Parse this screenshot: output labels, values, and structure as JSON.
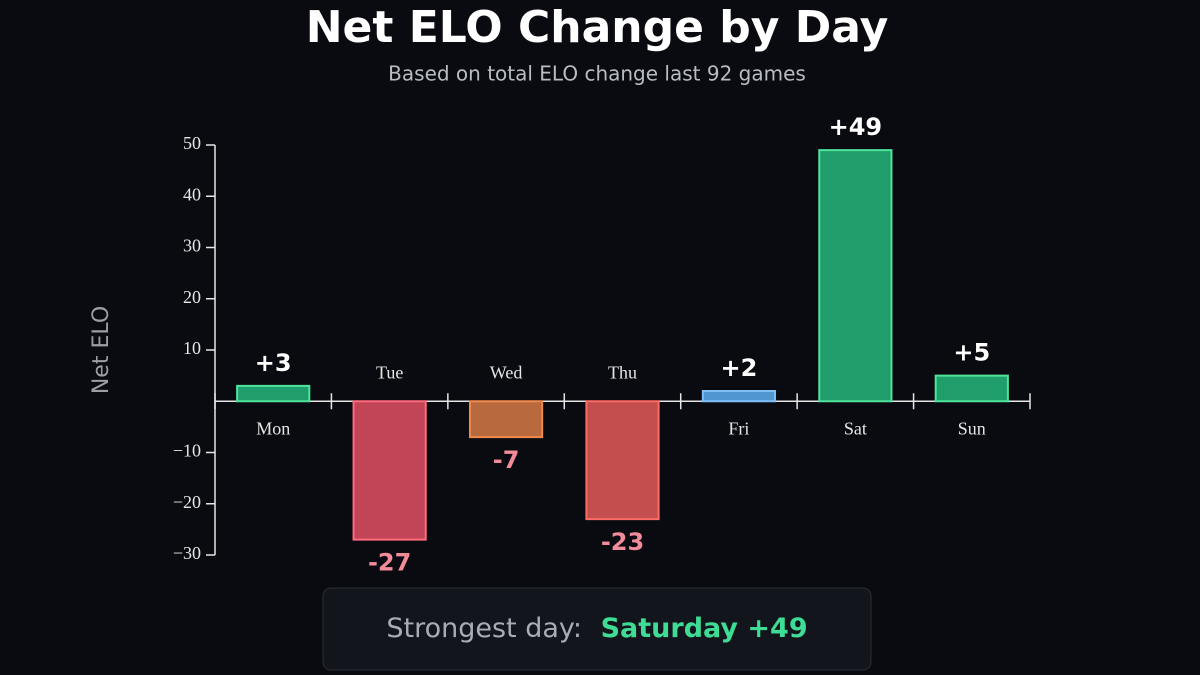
{
  "chart_data": {
    "type": "bar",
    "title": "Net ELO Change by Day",
    "subtitle": "Based on total ELO change last 92 games",
    "ylabel": "Net ELO",
    "categories": [
      "Mon",
      "Tue",
      "Wed",
      "Thu",
      "Fri",
      "Sat",
      "Sun"
    ],
    "values": [
      3,
      -27,
      -7,
      -23,
      2,
      49,
      5
    ],
    "value_labels": [
      "+3",
      "-27",
      "-7",
      "-23",
      "+2",
      "+49",
      "+5"
    ],
    "colors": [
      "#1f9e6c",
      "#c24457",
      "#b86a3e",
      "#c24f4e",
      "#4f97cf",
      "#1f9e6c",
      "#1f9e6c"
    ],
    "edgecolors": [
      "#4fe39c",
      "#ff6b7d",
      "#f08a4c",
      "#ff6b66",
      "#7dc0f5",
      "#4fe39c",
      "#4fe39c"
    ],
    "ylim": [
      -30,
      50
    ],
    "yticks": [
      {
        "value": -30,
        "label": "−30"
      },
      {
        "value": -20,
        "label": "−20"
      },
      {
        "value": -10,
        "label": "−10"
      },
      10,
      20,
      30,
      40,
      50
    ],
    "annotation": {
      "label": "Strongest day:",
      "value": "Saturday +49"
    }
  }
}
